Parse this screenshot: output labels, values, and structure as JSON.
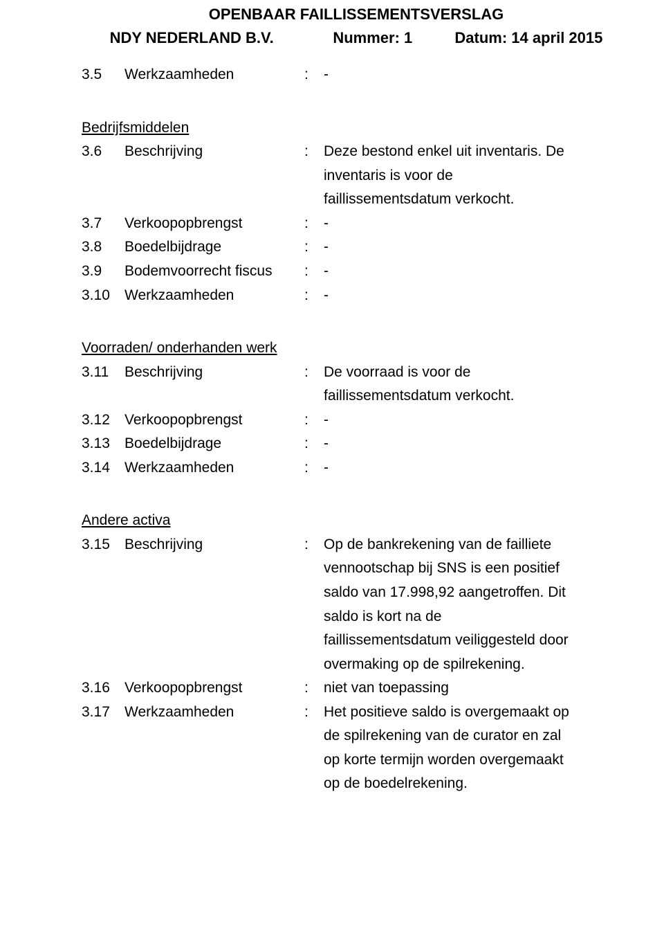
{
  "header": {
    "title": "OPENBAAR FAILLISSEMENTSVERSLAG",
    "subtitle": "NDY NEDERLAND B.V.              Nummer: 1          Datum: 14 april 2015"
  },
  "sections": {
    "s0": {
      "r35": {
        "num": "3.5",
        "label": "Werkzaamheden",
        "value": "-"
      }
    },
    "bedrijfsmiddelen": {
      "heading": "Bedrijfsmiddelen",
      "r36": {
        "num": "3.6",
        "label": "Beschrijving",
        "value": "Deze bestond enkel uit inventaris. De"
      },
      "r36b": "inventaris is voor de",
      "r36c": "faillissementsdatum verkocht.",
      "r37": {
        "num": "3.7",
        "label": "Verkoopopbrengst",
        "value": "-"
      },
      "r38": {
        "num": "3.8",
        "label": "Boedelbijdrage",
        "value": "-"
      },
      "r39": {
        "num": "3.9",
        "label": "Bodemvoorrecht fiscus",
        "value": "-"
      },
      "r310": {
        "num": "3.10",
        "label": "Werkzaamheden",
        "value": "-"
      }
    },
    "voorraden": {
      "heading": "Voorraden/ onderhanden werk",
      "r311": {
        "num": "3.11",
        "label": "Beschrijving",
        "value": "De voorraad is voor de"
      },
      "r311b": "faillissementsdatum verkocht.",
      "r312": {
        "num": "3.12",
        "label": "Verkoopopbrengst",
        "value": "-"
      },
      "r313": {
        "num": "3.13",
        "label": "Boedelbijdrage",
        "value": "-"
      },
      "r314": {
        "num": "3.14",
        "label": "Werkzaamheden",
        "value": "-"
      }
    },
    "andere": {
      "heading": "Andere activa",
      "r315": {
        "num": "3.15",
        "label": "Beschrijving",
        "value": "Op de bankrekening van de failliete"
      },
      "r315b": "vennootschap bij SNS is een positief",
      "r315c": "saldo van 17.998,92 aangetroffen. Dit",
      "r315d": "saldo is kort na de",
      "r315e": "faillissementsdatum veiliggesteld door",
      "r315f": "overmaking op de spilrekening.",
      "r316": {
        "num": "3.16",
        "label": "Verkoopopbrengst",
        "value": "niet van toepassing"
      },
      "r317": {
        "num": "3.17",
        "label": "Werkzaamheden",
        "value": "Het positieve saldo is overgemaakt op"
      },
      "r317b": "de spilrekening van de curator en zal",
      "r317c": "op korte termijn worden overgemaakt",
      "r317d": "op de boedelrekening."
    }
  }
}
